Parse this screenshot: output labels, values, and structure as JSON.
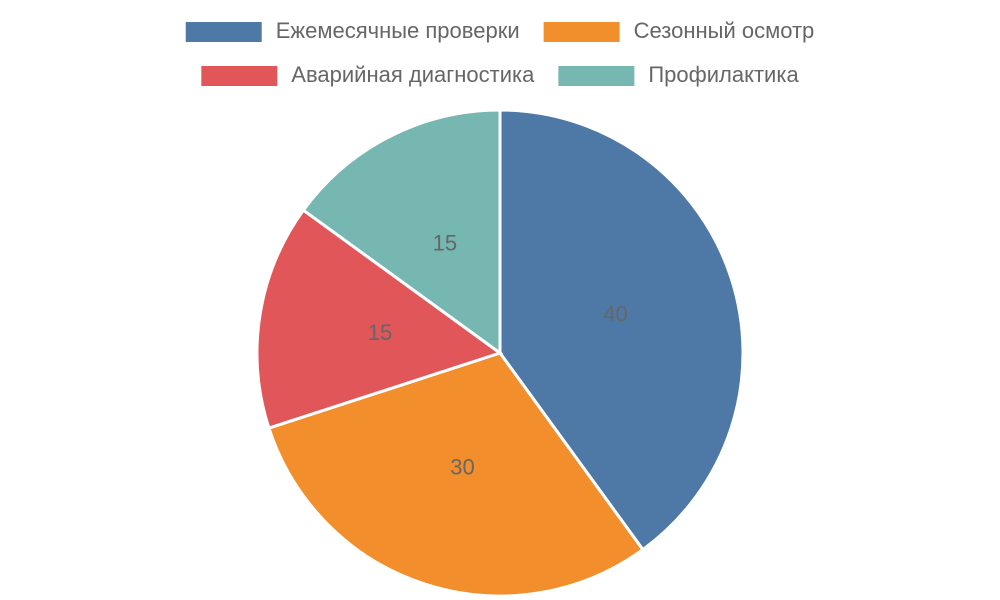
{
  "chart_data": {
    "type": "pie",
    "categories": [
      "Ежемесячные проверки",
      "Сезонный осмотр",
      "Аварийная диагностика",
      "Профилактика"
    ],
    "values": [
      40,
      30,
      15,
      15
    ],
    "colors": [
      "#4e79a7",
      "#f28e2b",
      "#e15759",
      "#76b7b2"
    ],
    "legend": "top"
  }
}
